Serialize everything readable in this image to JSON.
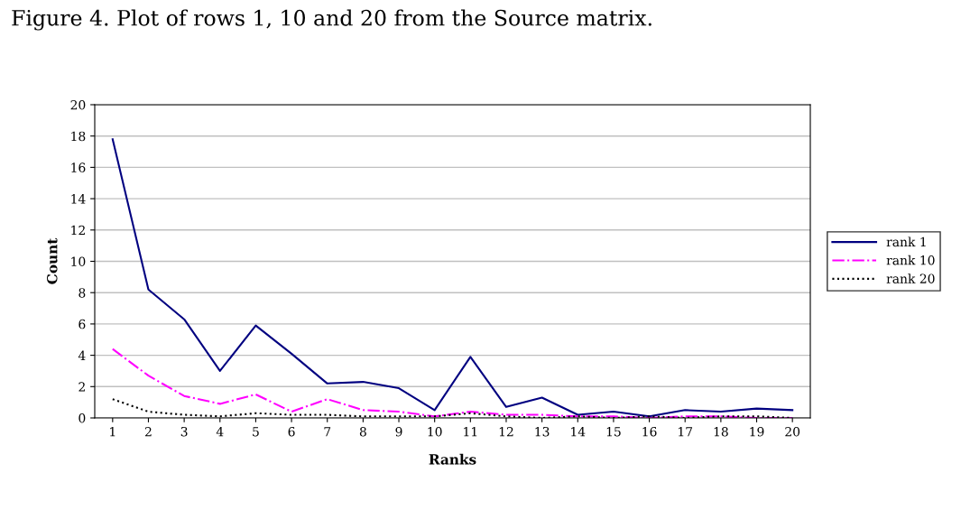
{
  "chart_data": {
    "type": "line",
    "title": "Figure 4. Plot of rows 1, 10 and 20 from the Source matrix.",
    "xlabel": "Ranks",
    "ylabel": "Count",
    "categories": [
      "1",
      "2",
      "3",
      "4",
      "5",
      "6",
      "7",
      "8",
      "9",
      "10",
      "11",
      "12",
      "13",
      "14",
      "15",
      "16",
      "17",
      "18",
      "19",
      "20"
    ],
    "ylim": [
      0,
      20
    ],
    "yticks": [
      0,
      2,
      4,
      6,
      8,
      10,
      12,
      14,
      16,
      18,
      20
    ],
    "grid": "y",
    "legend": "right",
    "marker": "none",
    "series": [
      {
        "name": "rank 1",
        "color": "#000080",
        "line_style": "solid",
        "values": [
          17.8,
          8.2,
          6.3,
          3.0,
          5.9,
          4.1,
          2.2,
          2.3,
          1.9,
          0.5,
          3.9,
          0.7,
          1.3,
          0.2,
          0.4,
          0.1,
          0.5,
          0.4,
          0.6,
          0.5
        ]
      },
      {
        "name": "rank 10",
        "color": "#ff00ff",
        "line_style": "dashdot",
        "values": [
          4.4,
          2.7,
          1.4,
          0.9,
          1.5,
          0.4,
          1.2,
          0.5,
          0.4,
          0.1,
          0.4,
          0.2,
          0.2,
          0.1,
          0.1,
          0.0,
          0.1,
          0.1,
          0.0,
          0.0
        ]
      },
      {
        "name": "rank 20",
        "color": "#000000",
        "line_style": "dotted",
        "values": [
          1.2,
          0.4,
          0.2,
          0.1,
          0.3,
          0.2,
          0.2,
          0.1,
          0.1,
          0.1,
          0.3,
          0.1,
          0.0,
          0.1,
          0.0,
          0.1,
          0.0,
          0.1,
          0.1,
          0.0
        ]
      }
    ]
  }
}
